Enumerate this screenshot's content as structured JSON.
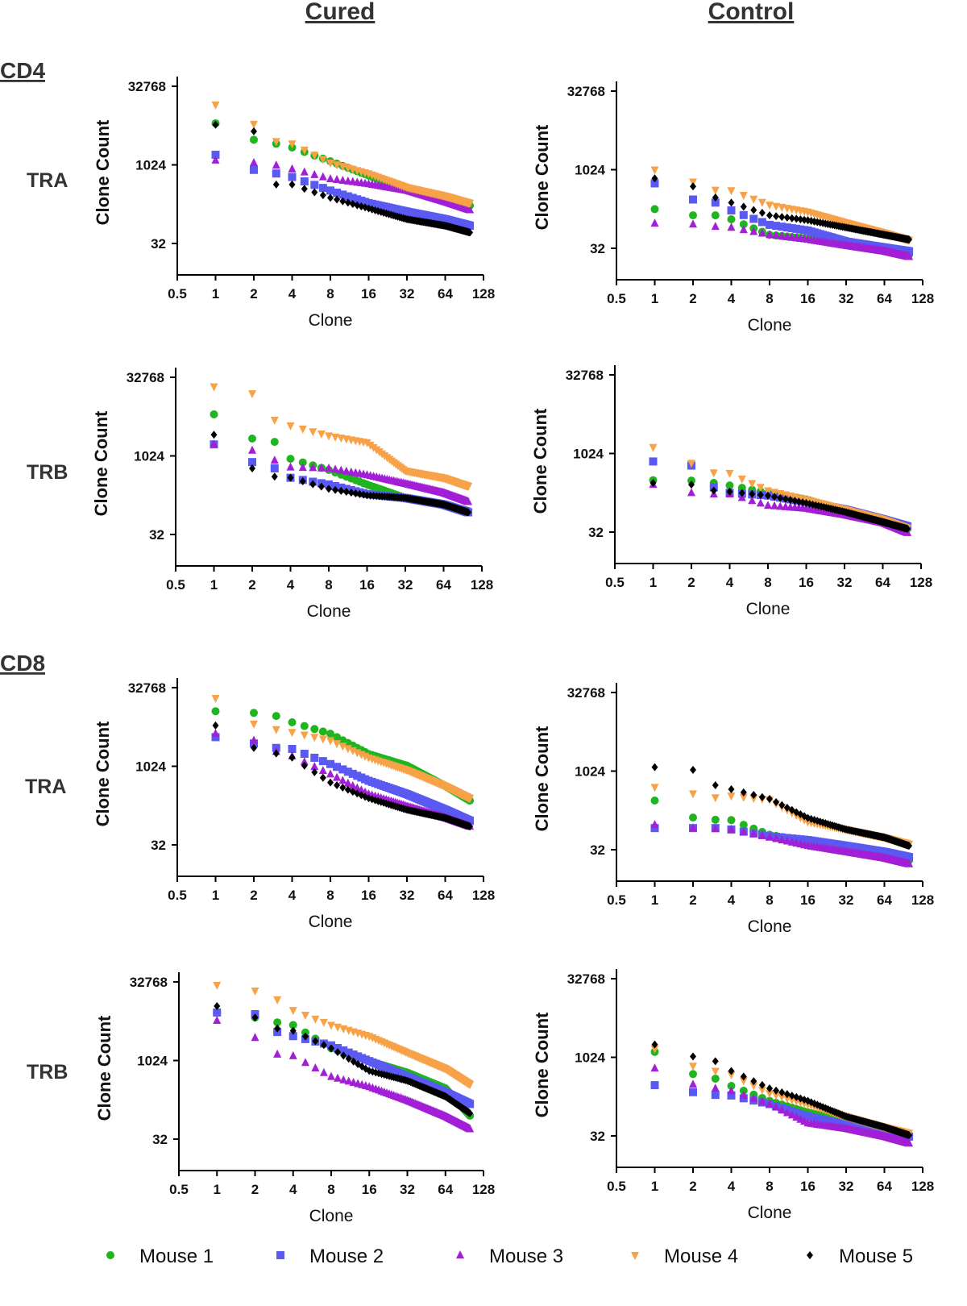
{
  "headers": {
    "cured": "Cured",
    "control": "Control",
    "cd4": "CD4",
    "cd8": "CD8",
    "tra": "TRA",
    "trb": "TRB"
  },
  "legend": [
    {
      "name": "Mouse 1",
      "color": "#1fb51f",
      "marker": "circle"
    },
    {
      "name": "Mouse 2",
      "color": "#5a5af2",
      "marker": "square"
    },
    {
      "name": "Mouse 3",
      "color": "#a21fd6",
      "marker": "triangle-up"
    },
    {
      "name": "Mouse 4",
      "color": "#f7a248",
      "marker": "triangle-down"
    },
    {
      "name": "Mouse 5",
      "color": "#000000",
      "marker": "diamond"
    }
  ],
  "chart_data": [
    {
      "type": "scatter",
      "group": "CD4",
      "chain": "TRA",
      "condition": "Cured",
      "xlabel": "Clone",
      "ylabel": "Clone Count",
      "xscale": "log2",
      "yscale": "log2",
      "xlim": [
        0.5,
        128
      ],
      "ylim": [
        8,
        32768
      ],
      "xticks": [
        "0.5",
        "1",
        "2",
        "4",
        "8",
        "16",
        "32",
        "64",
        "128"
      ],
      "yticks": [
        "32",
        "1024",
        "32768"
      ],
      "grid": false,
      "ranks": [
        1,
        2,
        3,
        4,
        8,
        16,
        32,
        64,
        100
      ],
      "series": [
        {
          "name": "Mouse 1",
          "values": [
            6400,
            3100,
            2600,
            2200,
            1200,
            640,
            345,
            225,
            170
          ]
        },
        {
          "name": "Mouse 2",
          "values": [
            1600,
            820,
            700,
            600,
            330,
            190,
            130,
            93,
            70
          ]
        },
        {
          "name": "Mouse 3",
          "values": [
            1250,
            1120,
            1000,
            850,
            550,
            440,
            330,
            200,
            140
          ]
        },
        {
          "name": "Mouse 4",
          "values": [
            14500,
            6200,
            2900,
            2600,
            1120,
            700,
            380,
            260,
            190
          ]
        },
        {
          "name": "Mouse 5",
          "values": [
            6000,
            4500,
            430,
            430,
            240,
            150,
            93,
            70,
            52
          ]
        }
      ]
    },
    {
      "type": "scatter",
      "group": "CD4",
      "chain": "TRA",
      "condition": "Control",
      "xlabel": "Clone",
      "ylabel": "Clone Count",
      "xscale": "log2",
      "yscale": "log2",
      "xlim": [
        0.5,
        128
      ],
      "ylim": [
        8,
        32768
      ],
      "xticks": [
        "0.5",
        "1",
        "2",
        "4",
        "8",
        "16",
        "32",
        "64",
        "128"
      ],
      "yticks": [
        "32",
        "1024",
        "32768"
      ],
      "grid": false,
      "ranks": [
        1,
        2,
        3,
        4,
        8,
        16,
        32,
        64,
        100
      ],
      "series": [
        {
          "name": "Mouse 1",
          "values": [
            180,
            137,
            137,
            115,
            58,
            49,
            37,
            29,
            24
          ]
        },
        {
          "name": "Mouse 2",
          "values": [
            560,
            275,
            240,
            170,
            90,
            70,
            43,
            33,
            28
          ]
        },
        {
          "name": "Mouse 3",
          "values": [
            96,
            92,
            83,
            80,
            58,
            47,
            36,
            28,
            22
          ]
        },
        {
          "name": "Mouse 4",
          "values": [
            1024,
            600,
            420,
            410,
            217,
            160,
            99,
            63,
            46
          ]
        },
        {
          "name": "Mouse 5",
          "values": [
            700,
            490,
            300,
            240,
            137,
            110,
            80,
            58,
            47
          ]
        }
      ]
    },
    {
      "type": "scatter",
      "group": "CD4",
      "chain": "TRB",
      "condition": "Cured",
      "xlabel": "Clone",
      "ylabel": "Clone Count",
      "xscale": "log2",
      "yscale": "log2",
      "xlim": [
        0.5,
        128
      ],
      "ylim": [
        8,
        32768
      ],
      "xticks": [
        "0.5",
        "1",
        "2",
        "4",
        "8",
        "16",
        "32",
        "64",
        "128"
      ],
      "yticks": [
        "32",
        "1024",
        "32768"
      ],
      "grid": false,
      "ranks": [
        1,
        2,
        3,
        4,
        8,
        16,
        32,
        64,
        100
      ],
      "series": [
        {
          "name": "Mouse 1",
          "values": [
            6400,
            2200,
            1900,
            900,
            550,
            290,
            160,
            120,
            90
          ]
        },
        {
          "name": "Mouse 2",
          "values": [
            1700,
            780,
            590,
            390,
            290,
            190,
            160,
            120,
            85
          ]
        },
        {
          "name": "Mouse 3",
          "values": [
            1700,
            1300,
            840,
            620,
            590,
            440,
            300,
            200,
            135
          ]
        },
        {
          "name": "Mouse 4",
          "values": [
            21800,
            16000,
            5000,
            3900,
            2500,
            1850,
            530,
            390,
            270
          ]
        },
        {
          "name": "Mouse 5",
          "values": [
            2600,
            590,
            410,
            390,
            240,
            180,
            160,
            120,
            85
          ]
        }
      ]
    },
    {
      "type": "scatter",
      "group": "CD4",
      "chain": "TRB",
      "condition": "Control",
      "xlabel": "Clone",
      "ylabel": "Clone Count",
      "xscale": "log2",
      "yscale": "log2",
      "xlim": [
        0.5,
        128
      ],
      "ylim": [
        8,
        32768
      ],
      "xticks": [
        "0.5",
        "1",
        "2",
        "4",
        "8",
        "16",
        "32",
        "64",
        "128"
      ],
      "yticks": [
        "32",
        "1024",
        "32768"
      ],
      "grid": false,
      "ranks": [
        1,
        2,
        3,
        4,
        8,
        16,
        32,
        64,
        100
      ],
      "series": [
        {
          "name": "Mouse 1",
          "values": [
            316,
            310,
            280,
            250,
            180,
            135,
            80,
            52,
            37
          ]
        },
        {
          "name": "Mouse 2",
          "values": [
            720,
            600,
            230,
            180,
            160,
            120,
            87,
            56,
            41
          ]
        },
        {
          "name": "Mouse 3",
          "values": [
            260,
            180,
            170,
            170,
            103,
            90,
            68,
            48,
            31
          ]
        },
        {
          "name": "Mouse 4",
          "values": [
            1350,
            670,
            440,
            430,
            200,
            135,
            87,
            56,
            38
          ]
        },
        {
          "name": "Mouse 5",
          "values": [
            280,
            260,
            200,
            190,
            160,
            115,
            78,
            50,
            37
          ]
        }
      ]
    },
    {
      "type": "scatter",
      "group": "CD8",
      "chain": "TRA",
      "condition": "Cured",
      "xlabel": "Clone",
      "ylabel": "Clone Count",
      "xscale": "log2",
      "yscale": "log2",
      "xlim": [
        0.5,
        128
      ],
      "ylim": [
        8,
        32768
      ],
      "xticks": [
        "0.5",
        "1",
        "2",
        "4",
        "8",
        "16",
        "32",
        "64",
        "128"
      ],
      "yticks": [
        "32",
        "1024",
        "32768"
      ],
      "grid": false,
      "ranks": [
        1,
        2,
        3,
        4,
        8,
        16,
        32,
        64,
        100
      ],
      "series": [
        {
          "name": "Mouse 1",
          "values": [
            11600,
            10800,
            9400,
            7100,
            4300,
            1760,
            1050,
            430,
            225
          ]
        },
        {
          "name": "Mouse 2",
          "values": [
            3700,
            2800,
            2300,
            2200,
            1130,
            540,
            300,
            150,
            92
          ]
        },
        {
          "name": "Mouse 3",
          "values": [
            4300,
            3200,
            1950,
            1600,
            720,
            300,
            175,
            105,
            72
          ]
        },
        {
          "name": "Mouse 4",
          "values": [
            20600,
            6650,
            5200,
            4600,
            3200,
            1500,
            870,
            430,
            250
          ]
        },
        {
          "name": "Mouse 5",
          "values": [
            6200,
            2300,
            1800,
            1500,
            500,
            250,
            150,
            105,
            72
          ]
        }
      ]
    },
    {
      "type": "scatter",
      "group": "CD8",
      "chain": "TRA",
      "condition": "Control",
      "xlabel": "Clone",
      "ylabel": "Clone Count",
      "xscale": "log2",
      "yscale": "log2",
      "xlim": [
        0.5,
        128
      ],
      "ylim": [
        8,
        32768
      ],
      "xticks": [
        "0.5",
        "1",
        "2",
        "4",
        "8",
        "16",
        "32",
        "64",
        "128"
      ],
      "yticks": [
        "32",
        "1024",
        "32768"
      ],
      "grid": false,
      "ranks": [
        1,
        2,
        3,
        4,
        8,
        16,
        32,
        64,
        100
      ],
      "series": [
        {
          "name": "Mouse 1",
          "values": [
            280,
            132,
            120,
            118,
            62,
            45,
            36,
            27,
            20
          ]
        },
        {
          "name": "Mouse 2",
          "values": [
            83,
            83,
            83,
            78,
            58,
            49,
            38,
            29,
            23
          ]
        },
        {
          "name": "Mouse 3",
          "values": [
            96,
            83,
            80,
            78,
            55,
            38,
            29,
            22,
            17
          ]
        },
        {
          "name": "Mouse 4",
          "values": [
            505,
            380,
            320,
            345,
            290,
            110,
            78,
            55,
            41
          ]
        },
        {
          "name": "Mouse 5",
          "values": [
            1220,
            1080,
            550,
            460,
            300,
            130,
            78,
            55,
            38
          ]
        }
      ]
    },
    {
      "type": "scatter",
      "group": "CD8",
      "chain": "TRB",
      "condition": "Cured",
      "xlabel": "Clone",
      "ylabel": "Clone Count",
      "xscale": "log2",
      "yscale": "log2",
      "xlim": [
        0.5,
        128
      ],
      "ylim": [
        8,
        32768
      ],
      "xticks": [
        "0.5",
        "1",
        "2",
        "4",
        "8",
        "16",
        "32",
        "64",
        "128"
      ],
      "yticks": [
        "32",
        "1024",
        "32768"
      ],
      "grid": false,
      "ranks": [
        1,
        2,
        3,
        4,
        8,
        16,
        32,
        64,
        100
      ],
      "series": [
        {
          "name": "Mouse 1",
          "values": [
            8500,
            6800,
            5500,
            4900,
            1750,
            1000,
            600,
            300,
            90
          ]
        },
        {
          "name": "Mouse 2",
          "values": [
            8500,
            7900,
            3600,
            3000,
            2000,
            1000,
            500,
            250,
            150
          ]
        },
        {
          "name": "Mouse 3",
          "values": [
            5950,
            2800,
            1340,
            1250,
            500,
            320,
            175,
            87,
            50
          ]
        },
        {
          "name": "Mouse 4",
          "values": [
            28500,
            22200,
            15000,
            9400,
            4900,
            3000,
            1450,
            720,
            360
          ]
        },
        {
          "name": "Mouse 5",
          "values": [
            11300,
            6800,
            4200,
            3800,
            1750,
            650,
            420,
            210,
            100
          ]
        }
      ]
    },
    {
      "type": "scatter",
      "group": "CD8",
      "chain": "TRB",
      "condition": "Control",
      "xlabel": "Clone",
      "ylabel": "Clone Count",
      "xscale": "log2",
      "yscale": "log2",
      "xlim": [
        0.5,
        128
      ],
      "ylim": [
        8,
        32768
      ],
      "xticks": [
        "0.5",
        "1",
        "2",
        "4",
        "8",
        "16",
        "32",
        "64",
        "128"
      ],
      "yticks": [
        "32",
        "1024",
        "32768"
      ],
      "grid": false,
      "ranks": [
        1,
        2,
        3,
        4,
        8,
        16,
        32,
        64,
        100
      ],
      "series": [
        {
          "name": "Mouse 1",
          "values": [
            1300,
            490,
            400,
            290,
            150,
            90,
            62,
            44,
            31
          ]
        },
        {
          "name": "Mouse 2",
          "values": [
            300,
            220,
            195,
            190,
            130,
            75,
            52,
            37,
            31
          ]
        },
        {
          "name": "Mouse 3",
          "values": [
            630,
            310,
            260,
            230,
            130,
            56,
            44,
            31,
            23
          ]
        },
        {
          "name": "Mouse 4",
          "values": [
            1500,
            700,
            560,
            480,
            210,
            130,
            75,
            47,
            36
          ]
        },
        {
          "name": "Mouse 5",
          "values": [
            1800,
            1060,
            860,
            560,
            260,
            150,
            75,
            47,
            33
          ]
        }
      ]
    }
  ]
}
